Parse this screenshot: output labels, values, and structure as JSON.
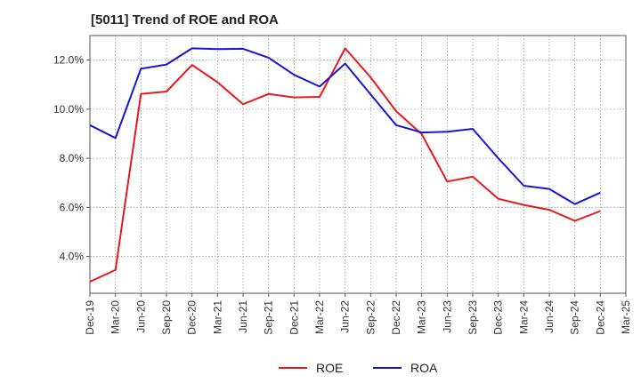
{
  "chart_data": {
    "type": "line",
    "title": "[5011]  Trend of ROE and ROA",
    "xlabel": "",
    "ylabel": "",
    "categories": [
      "Dec-19",
      "Mar-20",
      "Jun-20",
      "Sep-20",
      "Dec-20",
      "Mar-21",
      "Jun-21",
      "Sep-21",
      "Dec-21",
      "Mar-22",
      "Jun-22",
      "Sep-22",
      "Dec-22",
      "Mar-23",
      "Jun-23",
      "Sep-23",
      "Dec-23",
      "Mar-24",
      "Jun-24",
      "Sep-24",
      "Dec-24",
      "Mar-25"
    ],
    "ylim": [
      2.5,
      13.0
    ],
    "yticks": [
      4.0,
      6.0,
      8.0,
      10.0,
      12.0
    ],
    "ytick_labels": [
      "4.0%",
      "6.0%",
      "8.0%",
      "10.0%",
      "12.0%"
    ],
    "grid": true,
    "legend_position": "bottom",
    "series": [
      {
        "name": "ROE",
        "color": "#e8191a",
        "values": [
          2.97,
          3.45,
          10.62,
          10.72,
          11.8,
          11.1,
          10.2,
          10.62,
          10.48,
          10.5,
          12.48,
          11.3,
          9.92,
          8.98,
          7.05,
          7.25,
          6.35,
          6.1,
          5.9,
          5.45,
          5.85,
          null
        ]
      },
      {
        "name": "ROA",
        "color": "#1515d8",
        "values": [
          9.35,
          8.82,
          11.65,
          11.82,
          12.48,
          12.45,
          12.46,
          12.1,
          11.4,
          10.92,
          11.86,
          10.6,
          9.35,
          9.05,
          9.08,
          9.2,
          8.0,
          6.88,
          6.75,
          6.13,
          6.6,
          null
        ]
      }
    ]
  }
}
